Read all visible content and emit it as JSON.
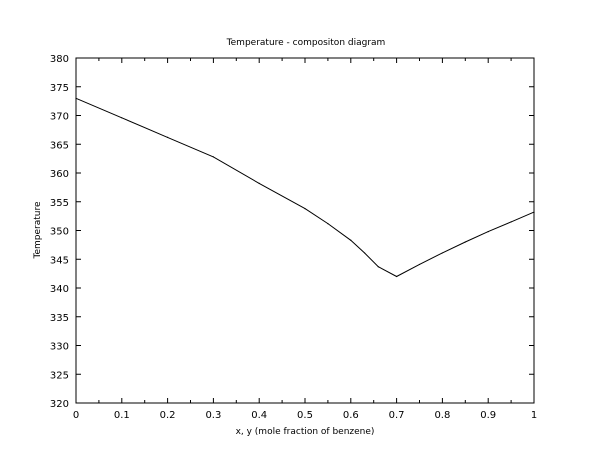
{
  "chart_data": {
    "type": "line",
    "title": "Temperature - compositon diagram",
    "xlabel": "x, y (mole fraction of benzene)",
    "ylabel": "Temperature",
    "xlim": [
      0,
      1
    ],
    "ylim": [
      320,
      380
    ],
    "x_ticks": [
      0,
      0.1,
      0.2,
      0.3,
      0.4,
      0.5,
      0.6,
      0.7,
      0.8,
      0.9,
      1
    ],
    "x_tick_labels": [
      "0",
      "0.1",
      "0.2",
      "0.3",
      "0.4",
      "0.5",
      "0.6",
      "0.7",
      "0.8",
      "0.9",
      "1"
    ],
    "y_ticks": [
      320,
      325,
      330,
      335,
      340,
      345,
      350,
      355,
      360,
      365,
      370,
      375,
      380
    ],
    "y_tick_labels": [
      "320",
      "325",
      "330",
      "335",
      "340",
      "345",
      "350",
      "355",
      "360",
      "365",
      "370",
      "375",
      "380"
    ],
    "grid": false,
    "series": [
      {
        "color": "#000000",
        "x": [
          0,
          0.1,
          0.2,
          0.3,
          0.4,
          0.5,
          0.55,
          0.6,
          0.63,
          0.66,
          0.7,
          0.75,
          0.8,
          0.85,
          0.9,
          0.95,
          1
        ],
        "y": [
          373,
          369.6,
          366.2,
          362.8,
          358.2,
          353.8,
          351.2,
          348.3,
          346.1,
          343.7,
          342,
          344.1,
          346.1,
          348,
          349.8,
          351.5,
          353.2
        ]
      }
    ]
  }
}
